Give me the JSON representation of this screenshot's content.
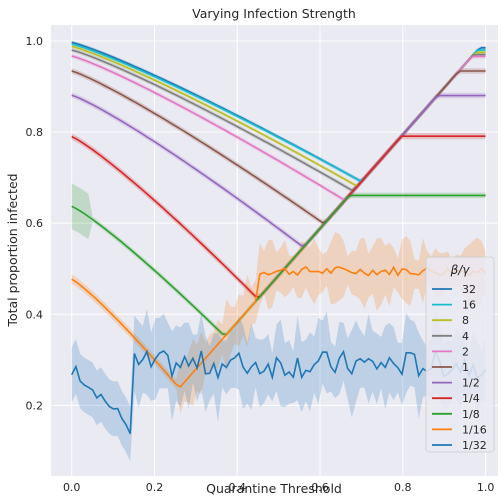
{
  "chart_data": {
    "type": "line",
    "title": "Varying Infection Strength",
    "xlabel": "Quarantine Threshold",
    "ylabel": "Total proportion infected",
    "xlim": [
      -0.05,
      1.03
    ],
    "ylim": [
      0.045,
      1.035
    ],
    "xticks": [
      "0.0",
      "0.2",
      "0.4",
      "0.6",
      "0.8",
      "1.0"
    ],
    "yticks": [
      "0.2",
      "0.4",
      "0.6",
      "0.8",
      "1.0"
    ],
    "grid": true,
    "background": "#eaeaf2",
    "legend": {
      "title": "β/γ",
      "position": "lower-right"
    },
    "series": [
      {
        "name": "32",
        "color": "#1f77b4",
        "start": 0.997,
        "cutoff": 0.7,
        "plateau": 0.985,
        "band": 0.004
      },
      {
        "name": "16",
        "color": "#17becf",
        "start": 0.993,
        "cutoff": 0.7,
        "plateau": 0.98,
        "band": 0.004
      },
      {
        "name": "8",
        "color": "#bcbd22",
        "start": 0.988,
        "cutoff": 0.69,
        "plateau": 0.975,
        "band": 0.004
      },
      {
        "name": "4",
        "color": "#7f7f7f",
        "start": 0.98,
        "cutoff": 0.68,
        "plateau": 0.97,
        "band": 0.005
      },
      {
        "name": "2",
        "color": "#e377c2",
        "start": 0.967,
        "cutoff": 0.66,
        "plateau": 0.966,
        "band": 0.005
      },
      {
        "name": "1",
        "color": "#8c564b",
        "start": 0.934,
        "cutoff": 0.61,
        "plateau": 0.934,
        "band": 0.006
      },
      {
        "name": "1/2",
        "color": "#9467bd",
        "start": 0.881,
        "cutoff": 0.56,
        "plateau": 0.88,
        "band": 0.006
      },
      {
        "name": "1/4",
        "color": "#d62728",
        "start": 0.79,
        "cutoff": 0.45,
        "plateau": 0.791,
        "band": 0.007
      },
      {
        "name": "1/8",
        "color": "#2ca02c",
        "start": 0.637,
        "cutoff": 0.37,
        "plateau": 0.661,
        "band": 0.006
      },
      {
        "name": "1/16",
        "color": "#ff7f0e",
        "start": 0.477,
        "cutoff": 0.26,
        "plateau": 0.495,
        "band": 0.01
      },
      {
        "name": "1/32",
        "color": "#1f77b4",
        "start": 0.28,
        "cutoff": 0.15,
        "plateau": 0.29,
        "band": 0.06
      }
    ],
    "notes_values": {
      "diagonal_start": [
        0.32,
        0.3
      ],
      "diagonal_end": [
        0.99,
        0.99
      ]
    }
  }
}
